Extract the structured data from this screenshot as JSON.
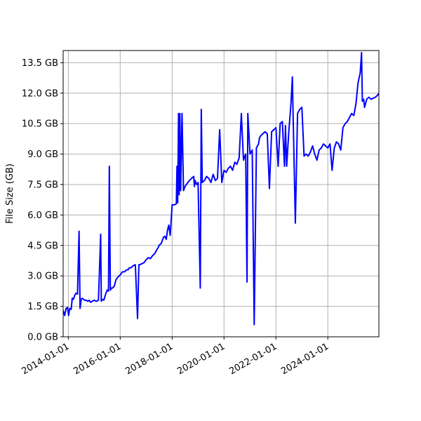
{
  "chart_data": {
    "type": "line",
    "title": "",
    "xlabel": "",
    "ylabel": "File Size (GB)",
    "grid": true,
    "colors": {
      "line": "#0000ff",
      "grid": "#b0b0b0",
      "axes": "#000000"
    },
    "xlim": [
      "2013-10-20",
      "2025-12-20"
    ],
    "ylim": [
      0.0,
      14.1
    ],
    "x_ticks": [
      "2014-01-01",
      "2016-01-01",
      "2018-01-01",
      "2020-01-01",
      "2022-01-01",
      "2024-01-01"
    ],
    "y_ticks": [
      {
        "value": 0.0,
        "label": "0.0 GB"
      },
      {
        "value": 1.5,
        "label": "1.5 GB"
      },
      {
        "value": 3.0,
        "label": "3.0 GB"
      },
      {
        "value": 4.5,
        "label": "4.5 GB"
      },
      {
        "value": 6.0,
        "label": "6.0 GB"
      },
      {
        "value": 7.5,
        "label": "7.5 GB"
      },
      {
        "value": 9.0,
        "label": "9.0 GB"
      },
      {
        "value": 10.5,
        "label": "10.5 GB"
      },
      {
        "value": 12.0,
        "label": "12.0 GB"
      },
      {
        "value": 13.5,
        "label": "13.5 GB"
      }
    ],
    "series": [
      {
        "x": [
          "2013-10-20",
          "2013-11-10",
          "2013-12-01",
          "2013-12-20",
          "2014-01-05",
          "2014-01-20",
          "2014-02-10",
          "2014-02-25",
          "2014-03-15",
          "2014-04-01",
          "2014-04-20",
          "2014-05-10",
          "2014-06-01",
          "2014-06-15",
          "2014-07-01",
          "2014-07-15",
          "2014-08-01",
          "2014-08-20",
          "2014-09-10",
          "2014-10-01",
          "2014-10-20",
          "2014-11-10",
          "2014-12-01",
          "2015-01-01",
          "2015-02-01",
          "2015-03-01",
          "2015-04-01",
          "2015-04-10",
          "2015-04-20",
          "2015-05-15",
          "2015-06-10",
          "2015-07-01",
          "2015-07-20",
          "2015-08-01",
          "2015-08-15",
          "2015-09-01",
          "2015-09-15",
          "2015-10-10",
          "2015-11-01",
          "2015-12-01",
          "2016-01-01",
          "2016-02-01",
          "2016-03-01",
          "2016-04-01",
          "2016-04-20",
          "2016-05-10",
          "2016-06-01",
          "2016-07-01",
          "2016-08-01",
          "2016-09-01",
          "2016-09-20",
          "2016-10-01",
          "2016-11-01",
          "2016-12-01",
          "2017-01-01",
          "2017-02-01",
          "2017-03-01",
          "2017-04-01",
          "2017-05-01",
          "2017-06-01",
          "2017-06-20",
          "2017-07-01",
          "2017-08-01",
          "2017-09-01",
          "2017-09-20",
          "2017-10-10",
          "2017-10-25",
          "2017-11-15",
          "2017-12-05",
          "2018-01-01",
          "2018-02-01",
          "2018-03-01",
          "2018-03-10",
          "2018-03-20",
          "2018-04-01",
          "2018-04-10",
          "2018-04-20",
          "2018-05-01",
          "2018-05-20",
          "2018-06-10",
          "2018-07-01",
          "2018-07-20",
          "2018-08-10",
          "2018-09-01",
          "2018-10-01",
          "2018-11-01",
          "2018-11-10",
          "2018-11-20",
          "2018-12-10",
          "2019-01-01",
          "2019-02-01",
          "2019-02-15",
          "2019-03-01",
          "2019-04-01",
          "2019-05-01",
          "2019-06-01",
          "2019-07-01",
          "2019-08-01",
          "2019-09-01",
          "2019-10-01",
          "2019-11-01",
          "2019-12-01",
          "2020-01-01",
          "2020-02-01",
          "2020-03-01",
          "2020-04-01",
          "2020-05-01",
          "2020-06-01",
          "2020-07-01",
          "2020-07-20",
          "2020-08-01",
          "2020-09-01",
          "2020-10-01",
          "2020-10-20",
          "2020-11-01",
          "2020-11-20",
          "2020-12-01",
          "2021-01-01",
          "2021-02-01",
          "2021-03-01",
          "2021-04-01",
          "2021-05-01",
          "2021-05-15",
          "2021-06-01",
          "2021-07-01",
          "2021-08-01",
          "2021-09-01",
          "2021-10-01",
          "2021-11-01",
          "2021-12-01",
          "2022-01-01",
          "2022-02-01",
          "2022-03-01",
          "2022-04-01",
          "2022-05-01",
          "2022-05-15",
          "2022-06-01",
          "2022-07-01",
          "2022-08-01",
          "2022-08-20",
          "2022-09-01",
          "2022-10-01",
          "2022-11-01",
          "2022-12-01",
          "2023-01-01",
          "2023-02-01",
          "2023-03-01",
          "2023-04-01",
          "2023-05-01",
          "2023-06-01",
          "2023-07-01",
          "2023-08-01",
          "2023-09-01",
          "2023-10-01",
          "2023-11-01",
          "2023-12-01",
          "2024-01-01",
          "2024-02-01",
          "2024-03-01",
          "2024-04-01",
          "2024-05-01",
          "2024-06-01",
          "2024-07-01",
          "2024-08-01",
          "2024-09-01",
          "2024-10-01",
          "2024-11-01",
          "2024-12-01",
          "2025-01-01",
          "2025-02-01",
          "2025-03-01",
          "2025-04-01",
          "2025-04-20",
          "2025-05-01",
          "2025-05-20",
          "2025-06-01",
          "2025-07-01",
          "2025-08-01",
          "2025-09-01",
          "2025-10-01",
          "2025-11-01",
          "2025-12-01",
          "2025-12-20"
        ],
        "y": [
          1.3,
          1.05,
          1.4,
          1.45,
          1.05,
          1.4,
          1.35,
          1.9,
          1.85,
          2.05,
          2.15,
          2.1,
          5.2,
          1.4,
          1.85,
          1.9,
          1.85,
          1.8,
          1.8,
          1.75,
          1.8,
          1.7,
          1.75,
          1.8,
          1.75,
          1.8,
          5.05,
          1.75,
          1.85,
          1.8,
          2.1,
          2.3,
          2.25,
          8.4,
          2.3,
          2.4,
          2.4,
          2.5,
          2.8,
          2.95,
          3.05,
          3.2,
          3.2,
          3.3,
          3.3,
          3.4,
          3.4,
          3.5,
          3.55,
          0.9,
          3.55,
          3.55,
          3.6,
          3.65,
          3.8,
          3.9,
          3.85,
          4.0,
          4.1,
          4.3,
          4.4,
          4.5,
          4.6,
          4.9,
          4.95,
          4.8,
          5.2,
          5.5,
          5.0,
          6.5,
          6.5,
          6.55,
          8.4,
          6.6,
          11.0,
          7.0,
          11.0,
          7.2,
          11.0,
          7.2,
          7.4,
          7.5,
          7.6,
          7.7,
          7.8,
          7.9,
          7.4,
          7.7,
          7.5,
          7.6,
          2.4,
          11.2,
          7.6,
          7.7,
          7.9,
          7.8,
          7.6,
          8.0,
          7.7,
          7.8,
          10.2,
          7.6,
          8.2,
          8.1,
          8.3,
          8.4,
          8.2,
          8.6,
          8.5,
          8.7,
          8.8,
          11.0,
          8.7,
          8.9,
          9.0,
          2.7,
          11.0,
          9.0,
          9.2,
          0.6,
          9.3,
          9.5,
          9.8,
          9.9,
          10.0,
          10.1,
          10.0,
          7.3,
          10.1,
          10.2,
          10.3,
          8.4,
          10.5,
          10.6,
          8.4,
          10.4,
          8.4,
          10.1,
          11.5,
          12.8,
          10.7,
          5.6,
          11.0,
          11.2,
          11.3,
          8.9,
          9.0,
          8.9,
          9.1,
          9.4,
          9.0,
          8.7,
          9.2,
          9.3,
          9.5,
          9.4,
          9.3,
          9.5,
          8.2,
          9.3,
          9.6,
          9.5,
          9.2,
          10.3,
          10.5,
          10.6,
          10.8,
          11.0,
          10.9,
          11.5,
          12.5,
          13.0,
          14.0,
          11.6,
          11.7,
          11.3,
          11.7,
          11.8,
          11.7,
          11.75,
          11.8,
          11.9,
          12.0
        ]
      }
    ]
  }
}
